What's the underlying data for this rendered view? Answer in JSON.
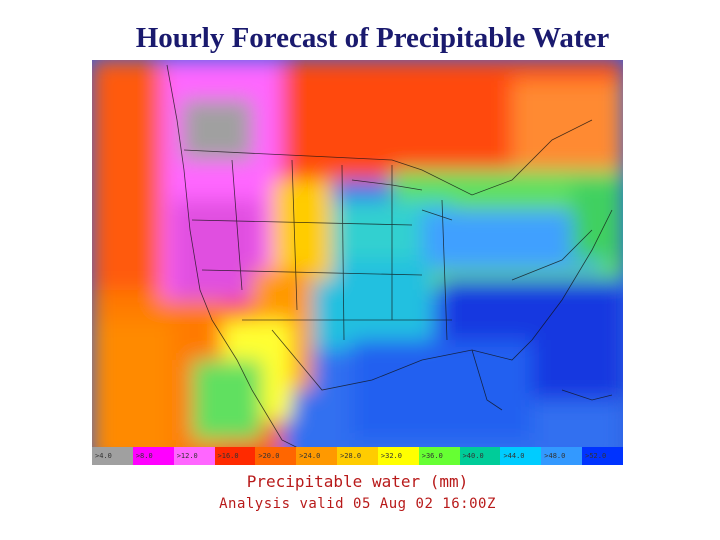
{
  "slide": {
    "title": "Hourly Forecast of Precipitable Water"
  },
  "map": {
    "title": "Precipitable water   (mm)",
    "valid_time": "Analysis valid 05  Aug  02 16:00Z",
    "legend": [
      {
        "label": ">4.0",
        "color": "#a0a0a0"
      },
      {
        "label": ">8.0",
        "color": "#ff00ff"
      },
      {
        "label": ">12.0",
        "color": "#ff66ff"
      },
      {
        "label": ">16.0",
        "color": "#ff2a00"
      },
      {
        "label": ">20.0",
        "color": "#ff6600"
      },
      {
        "label": ">24.0",
        "color": "#ff9900"
      },
      {
        "label": ">28.0",
        "color": "#ffcc00"
      },
      {
        "label": ">32.0",
        "color": "#ffff00"
      },
      {
        "label": ">36.0",
        "color": "#66ff33"
      },
      {
        "label": ">40.0",
        "color": "#00cc99"
      },
      {
        "label": ">44.0",
        "color": "#00ccff"
      },
      {
        "label": ">48.0",
        "color": "#3399ff"
      },
      {
        "label": ">52.0",
        "color": "#0033ff"
      }
    ]
  }
}
